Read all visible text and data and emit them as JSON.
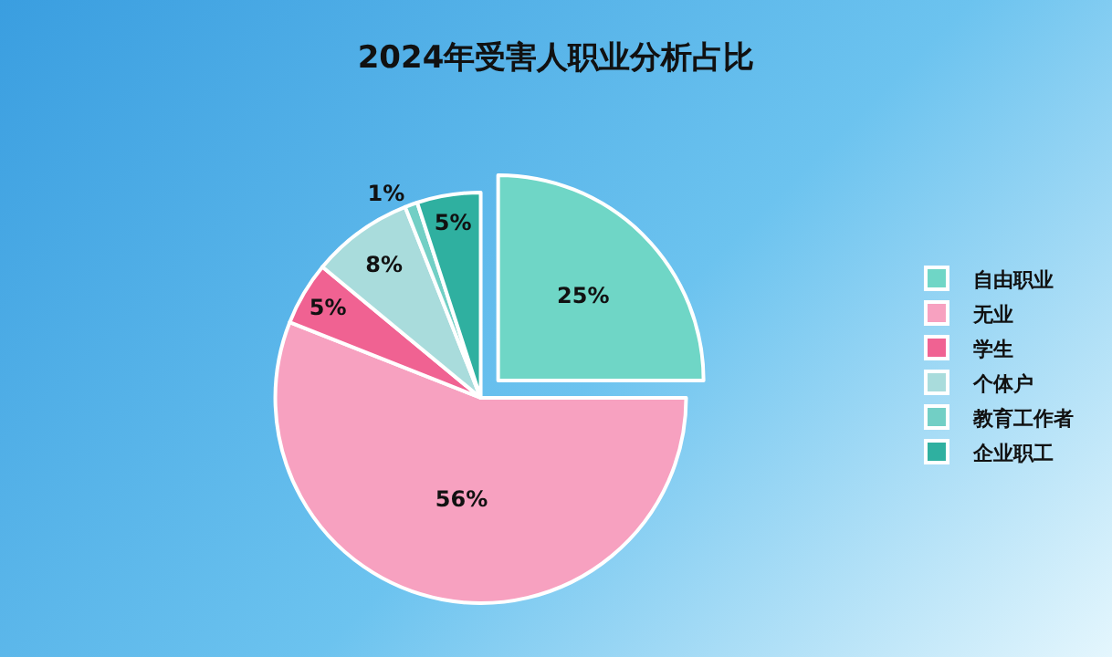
{
  "chart_data": {
    "type": "pie",
    "title": "2024年受害人职业分析占比",
    "categories": [
      "自由职业",
      "无业",
      "学生",
      "个体户",
      "教育工作者",
      "企业职工"
    ],
    "values": [
      25,
      56,
      5,
      8,
      1,
      5
    ],
    "value_labels": [
      "25%",
      "56%",
      "5%",
      "8%",
      "1%",
      "5%"
    ],
    "colors": [
      "#6fd6c6",
      "#f7a1c0",
      "#f06292",
      "#a9dcdc",
      "#72cfc5",
      "#2fb0a0"
    ],
    "legend": "right"
  }
}
